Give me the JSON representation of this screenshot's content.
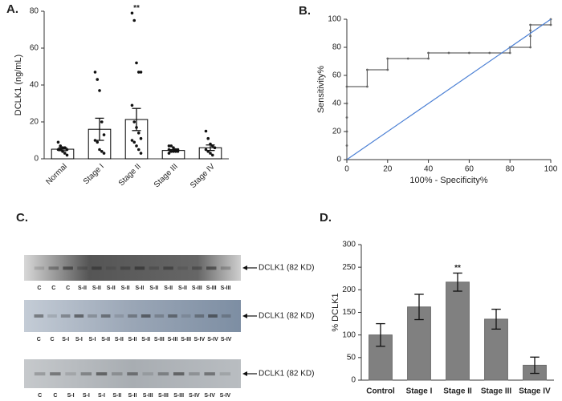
{
  "chart_data": [
    {
      "type": "bar",
      "label": "A.",
      "ylabel": "DCLK1 (ng/mL)",
      "categories": [
        "Normal",
        "Stage I",
        "Stage II",
        "Stage III",
        "Stage IV"
      ],
      "values": [
        5.2,
        16,
        21.3,
        4.5,
        6
      ],
      "errors": [
        0.8,
        6,
        6,
        0.5,
        1.5
      ],
      "points": [
        [
          9,
          7,
          6,
          6,
          5,
          5,
          5,
          4,
          3,
          2
        ],
        [
          47,
          43,
          37,
          20,
          13,
          10,
          9,
          5,
          4,
          3
        ],
        [
          79,
          75,
          52,
          47,
          47,
          29,
          20,
          17,
          14,
          11,
          10,
          9,
          7,
          5,
          3
        ],
        [
          7,
          7,
          6,
          5,
          5,
          5,
          4,
          4,
          4,
          4,
          3
        ],
        [
          15,
          11,
          8,
          7,
          6,
          5,
          4,
          3,
          2
        ]
      ],
      "color": "#ffffff",
      "edge": "#000000",
      "annotation": "**",
      "rotate_labels": true,
      "ylim": [
        0,
        80
      ],
      "yticks": [
        0,
        20,
        40,
        60,
        80
      ]
    },
    {
      "type": "line",
      "label": "B.",
      "xlabel": "100% - Specificity%",
      "ylabel": "Sensitivity%",
      "series": [
        {
          "color": "#666666",
          "markers": true,
          "x": [
            0,
            0,
            0,
            0,
            0,
            0,
            10,
            10,
            20,
            20,
            30,
            40,
            40,
            50,
            60,
            70,
            80,
            80,
            90,
            90,
            90,
            90,
            100,
            100
          ],
          "values": [
            0,
            10,
            20,
            30,
            40,
            52,
            52,
            64,
            64,
            72,
            72,
            72,
            76,
            76,
            76,
            76,
            76,
            80,
            80,
            88,
            92,
            96,
            96,
            100
          ]
        },
        {
          "color": "#4a7fd4",
          "markers": false,
          "x": [
            0,
            100
          ],
          "values": [
            0,
            100
          ]
        }
      ],
      "xlim": [
        0,
        100
      ],
      "ylim": [
        0,
        100
      ],
      "xticks": [
        0,
        20,
        40,
        60,
        80,
        100
      ],
      "yticks": [
        0,
        20,
        40,
        60,
        80,
        100
      ]
    },
    {
      "type": "bar",
      "label": "D.",
      "ylabel": "% DCLK1",
      "categories": [
        "Control",
        "Stage I",
        "Stage II",
        "Stage III",
        "Stage IV"
      ],
      "values": [
        100,
        162,
        217,
        135,
        33
      ],
      "errors": [
        25,
        28,
        20,
        22,
        18
      ],
      "color": "#808080",
      "edge": "#6a6a6a",
      "annotation": "**",
      "rotate_labels": false,
      "ylim": [
        0,
        300
      ],
      "yticks": [
        0,
        50,
        100,
        150,
        200,
        250,
        300
      ]
    }
  ],
  "blots": {
    "label": "C.",
    "rows": [
      {
        "lanes": [
          "C",
          "C",
          "C",
          "S-II",
          "S-II",
          "S-II",
          "S-II",
          "S-II",
          "S-II",
          "S-II",
          "S-II",
          "S-III",
          "S-III",
          "S-III"
        ],
        "marker": "DCLK1 (82 KD)"
      },
      {
        "lanes": [
          "C",
          "C",
          "S-I",
          "S-I",
          "S-I",
          "S-II",
          "S-II",
          "S-II",
          "S-II",
          "S-III",
          "S-III",
          "S-III",
          "S-IV",
          "S-IV",
          "S-IV"
        ],
        "marker": "DCLK1 (82 KD)"
      },
      {
        "lanes": [
          "C",
          "C",
          "S-I",
          "S-I",
          "S-I",
          "S-II",
          "S-II",
          "S-III",
          "S-III",
          "S-III",
          "S-IV",
          "S-IV",
          "S-IV"
        ],
        "marker": "DCLK1 (82 KD)"
      }
    ]
  }
}
